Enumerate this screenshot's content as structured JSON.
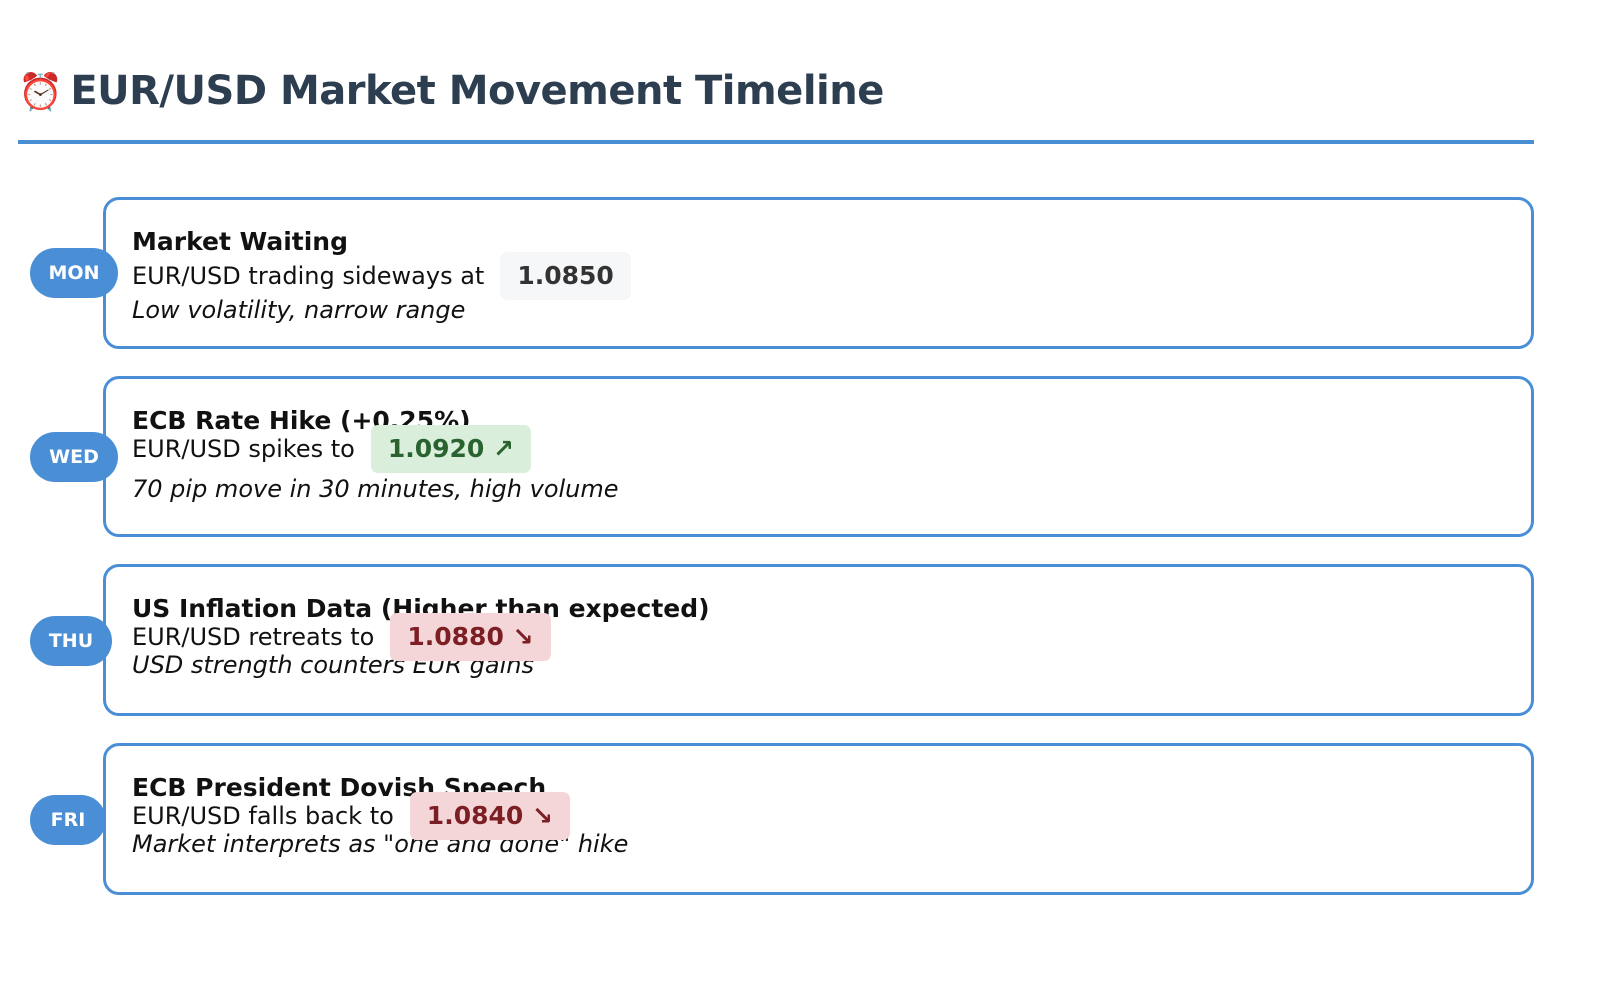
{
  "header": {
    "icon": "alarm-clock-icon",
    "icon_glyph": "⏰",
    "title": "EUR/USD Market Movement Timeline"
  },
  "colors": {
    "accent": "#4a8fd6",
    "title": "#2c3e50",
    "up_bg": "#d9eedb",
    "up_text": "#2a6330",
    "down_bg": "#f4d6d8",
    "down_text": "#7b1f24"
  },
  "events": [
    {
      "day": "MON",
      "title": "Market Waiting",
      "text": "EUR/USD trading sideways at",
      "price": "1.0850",
      "direction": "neutral",
      "note": "Low volatility, narrow range"
    },
    {
      "day": "WED",
      "title": "ECB Rate Hike (+0.25%)",
      "text": "EUR/USD spikes to",
      "price": "1.0920 ↗",
      "direction": "up",
      "note": "70 pip move in 30 minutes, high volume"
    },
    {
      "day": "THU",
      "title": "US Inflation Data (Higher than expected)",
      "text": "EUR/USD retreats to",
      "price": "1.0880 ↘",
      "direction": "down",
      "note": "USD strength counters EUR gains"
    },
    {
      "day": "FRI",
      "title": "ECB President Dovish Speech",
      "text": "EUR/USD falls back to",
      "price": "1.0840 ↘",
      "direction": "down",
      "note": "Market interprets as \"one and done\" hike"
    }
  ]
}
